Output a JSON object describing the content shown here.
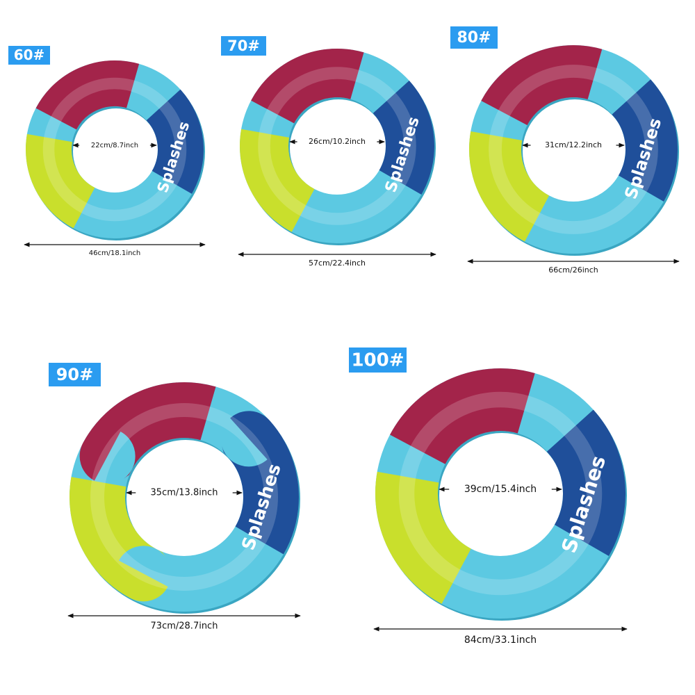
{
  "brand": "Splashes",
  "sizes": [
    {
      "label": "60#",
      "inner": "22cm/8.7inch",
      "outer": "46cm/18.1inch"
    },
    {
      "label": "70#",
      "inner": "26cm/10.2inch",
      "outer": "57cm/22.4inch"
    },
    {
      "label": "80#",
      "inner": "31cm/12.2inch",
      "outer": "66cm/26inch"
    },
    {
      "label": "90#",
      "inner": "35cm/13.8inch",
      "outer": "73cm/28.7inch"
    },
    {
      "label": "100#",
      "inner": "39cm/15.4inch",
      "outer": "84cm/33.1inch"
    }
  ]
}
